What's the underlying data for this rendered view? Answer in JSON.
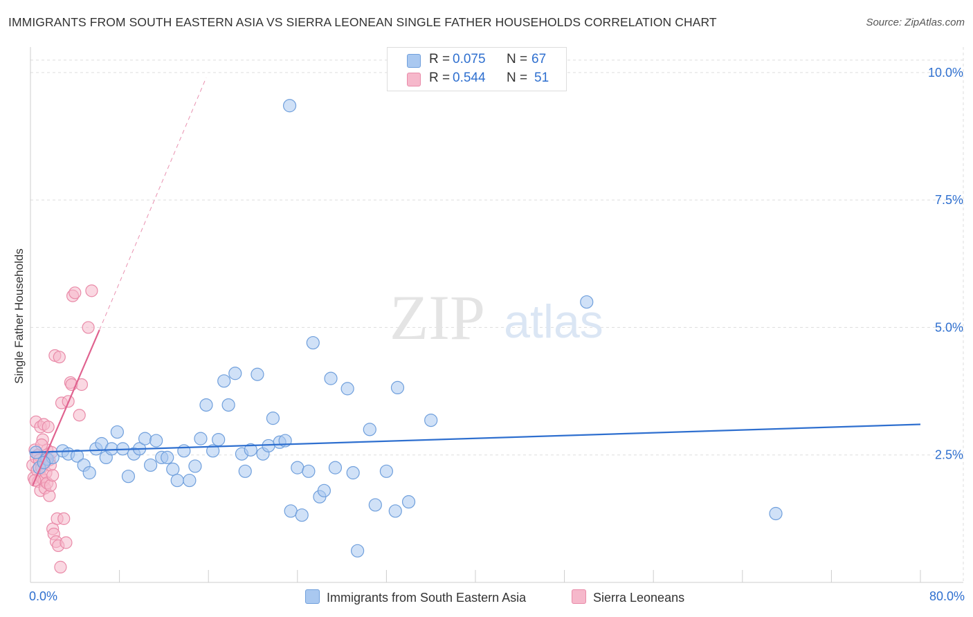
{
  "title": "IMMIGRANTS FROM SOUTH EASTERN ASIA VS SIERRA LEONEAN SINGLE FATHER HOUSEHOLDS CORRELATION CHART",
  "source": "Source: ZipAtlas.com",
  "watermark": {
    "zip": "ZIP",
    "atlas": "atlas"
  },
  "colors": {
    "blue_fill": "#a9c8f0",
    "blue_stroke": "#6f9fdc",
    "blue_line": "#2e6fcf",
    "pink_fill": "#f6b8cb",
    "pink_stroke": "#e98aa8",
    "pink_line": "#e0628f",
    "tick_text": "#2e6fcf",
    "grid": "#dddddd"
  },
  "legend": {
    "rows": [
      {
        "r_label": "R =",
        "r_value": "0.075",
        "n_label": "N =",
        "n_value": "67",
        "color": "#a9c8f0"
      },
      {
        "r_label": "R =",
        "r_value": "0.544",
        "n_label": "N =",
        "n_value": "51",
        "color": "#f6b8cb"
      }
    ]
  },
  "bottom_legend": [
    {
      "label": "Immigrants from South Eastern Asia",
      "color": "#a9c8f0"
    },
    {
      "label": "Sierra Leoneans",
      "color": "#f6b8cb"
    }
  ],
  "chart_data": {
    "type": "scatter",
    "title": "IMMIGRANTS FROM SOUTH EASTERN ASIA VS SIERRA LEONEAN SINGLE FATHER HOUSEHOLDS CORRELATION CHART",
    "xlabel": "",
    "ylabel": "Single Father Households",
    "xlim": [
      0,
      80
    ],
    "ylim": [
      0,
      10.5
    ],
    "x_tick_labels": [
      "0.0%",
      "80.0%"
    ],
    "y_ticks": [
      2.5,
      5.0,
      7.5,
      10.0
    ],
    "y_tick_labels": [
      "2.5%",
      "5.0%",
      "7.5%",
      "10.0%"
    ],
    "grid": true,
    "legend_position": "top-center",
    "series": [
      {
        "name": "Immigrants from South Eastern Asia",
        "trend": {
          "x": [
            0,
            80
          ],
          "y": [
            2.55,
            3.1
          ]
        },
        "points": [
          [
            0.8,
            2.25
          ],
          [
            1.5,
            2.42
          ],
          [
            2.0,
            2.45
          ],
          [
            2.9,
            2.58
          ],
          [
            3.4,
            2.52
          ],
          [
            4.2,
            2.48
          ],
          [
            4.8,
            2.3
          ],
          [
            5.3,
            2.15
          ],
          [
            5.9,
            2.62
          ],
          [
            6.4,
            2.72
          ],
          [
            6.8,
            2.45
          ],
          [
            7.3,
            2.62
          ],
          [
            7.8,
            2.95
          ],
          [
            8.3,
            2.62
          ],
          [
            8.8,
            2.08
          ],
          [
            9.3,
            2.52
          ],
          [
            9.8,
            2.62
          ],
          [
            10.3,
            2.82
          ],
          [
            10.8,
            2.3
          ],
          [
            11.3,
            2.78
          ],
          [
            11.8,
            2.45
          ],
          [
            12.3,
            2.45
          ],
          [
            12.8,
            2.22
          ],
          [
            13.2,
            2.0
          ],
          [
            13.8,
            2.58
          ],
          [
            14.3,
            2.0
          ],
          [
            14.8,
            2.28
          ],
          [
            15.3,
            2.82
          ],
          [
            15.8,
            3.48
          ],
          [
            16.4,
            2.58
          ],
          [
            16.9,
            2.8
          ],
          [
            17.4,
            3.95
          ],
          [
            17.8,
            3.48
          ],
          [
            18.4,
            4.1
          ],
          [
            19.0,
            2.52
          ],
          [
            19.3,
            2.18
          ],
          [
            19.8,
            2.6
          ],
          [
            20.4,
            4.08
          ],
          [
            20.9,
            2.52
          ],
          [
            21.4,
            2.68
          ],
          [
            21.8,
            3.22
          ],
          [
            22.4,
            2.75
          ],
          [
            22.9,
            2.78
          ],
          [
            23.4,
            1.4
          ],
          [
            24.0,
            2.25
          ],
          [
            24.4,
            1.32
          ],
          [
            25.0,
            2.18
          ],
          [
            25.4,
            4.7
          ],
          [
            26.0,
            1.68
          ],
          [
            26.4,
            1.8
          ],
          [
            27.0,
            4.0
          ],
          [
            27.4,
            2.25
          ],
          [
            28.5,
            3.8
          ],
          [
            29.0,
            2.15
          ],
          [
            29.4,
            0.62
          ],
          [
            30.5,
            3.0
          ],
          [
            31.0,
            1.52
          ],
          [
            32.0,
            2.18
          ],
          [
            32.8,
            1.4
          ],
          [
            33.0,
            3.82
          ],
          [
            34.0,
            1.58
          ],
          [
            36.0,
            3.18
          ],
          [
            23.3,
            9.35
          ],
          [
            50.0,
            5.5
          ],
          [
            67.0,
            1.35
          ],
          [
            0.5,
            2.55
          ],
          [
            1.2,
            2.35
          ]
        ]
      },
      {
        "name": "Sierra Leoneans",
        "trend": {
          "x": [
            0.2,
            6.2
          ],
          "y": [
            1.9,
            4.95
          ],
          "x_dashed": [
            6.2,
            15.8
          ],
          "y_dashed": [
            4.95,
            9.9
          ]
        },
        "points": [
          [
            0.2,
            2.3
          ],
          [
            0.3,
            2.05
          ],
          [
            0.4,
            2.6
          ],
          [
            0.5,
            2.45
          ],
          [
            0.5,
            3.15
          ],
          [
            0.6,
            2.2
          ],
          [
            0.7,
            1.98
          ],
          [
            0.7,
            2.5
          ],
          [
            0.8,
            2.4
          ],
          [
            0.9,
            3.05
          ],
          [
            0.9,
            1.8
          ],
          [
            1.0,
            2.25
          ],
          [
            1.0,
            2.05
          ],
          [
            1.1,
            2.8
          ],
          [
            1.2,
            2.0
          ],
          [
            1.2,
            3.1
          ],
          [
            1.3,
            2.35
          ],
          [
            1.3,
            1.85
          ],
          [
            1.4,
            2.45
          ],
          [
            1.4,
            2.15
          ],
          [
            1.5,
            2.6
          ],
          [
            1.5,
            1.95
          ],
          [
            1.6,
            3.05
          ],
          [
            1.7,
            2.4
          ],
          [
            1.7,
            1.7
          ],
          [
            1.8,
            1.9
          ],
          [
            1.8,
            2.3
          ],
          [
            1.9,
            2.55
          ],
          [
            2.0,
            2.1
          ],
          [
            2.0,
            1.05
          ],
          [
            2.1,
            0.95
          ],
          [
            2.2,
            4.45
          ],
          [
            2.3,
            0.8
          ],
          [
            2.4,
            1.25
          ],
          [
            2.5,
            0.72
          ],
          [
            2.6,
            4.42
          ],
          [
            2.7,
            0.3
          ],
          [
            2.8,
            3.52
          ],
          [
            3.0,
            1.25
          ],
          [
            3.2,
            0.78
          ],
          [
            3.4,
            3.55
          ],
          [
            3.6,
            3.92
          ],
          [
            3.7,
            3.88
          ],
          [
            3.8,
            5.62
          ],
          [
            4.0,
            5.68
          ],
          [
            4.4,
            3.28
          ],
          [
            4.6,
            3.88
          ],
          [
            5.2,
            5.0
          ],
          [
            5.5,
            5.72
          ],
          [
            0.4,
            2.0
          ],
          [
            1.0,
            2.7
          ]
        ]
      }
    ]
  }
}
